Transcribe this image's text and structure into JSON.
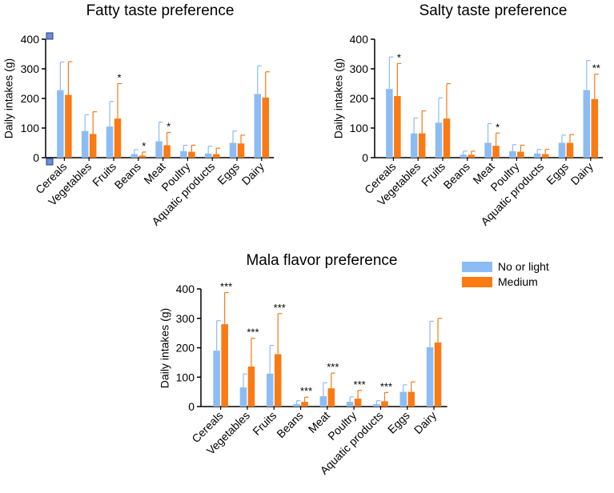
{
  "chart_data": [
    {
      "type": "bar",
      "title": "Fatty taste preference",
      "ylabel": "Daily intakes (g)",
      "ylim": [
        0,
        400
      ],
      "yticks": [
        0,
        100,
        200,
        300,
        400
      ],
      "categories": [
        "Cereals",
        "Vegetables",
        "Fruits",
        "Beans",
        "Meat",
        "Poultry",
        "Aquatic products",
        "Eggs",
        "Dairy"
      ],
      "series": [
        {
          "name": "No or light",
          "values": [
            228,
            90,
            105,
            12,
            55,
            22,
            14,
            50,
            215
          ],
          "errors": [
            95,
            55,
            85,
            15,
            65,
            20,
            25,
            40,
            95
          ]
        },
        {
          "name": "Medium",
          "values": [
            212,
            80,
            132,
            7,
            42,
            20,
            12,
            48,
            203
          ],
          "errors": [
            112,
            75,
            118,
            12,
            43,
            22,
            20,
            28,
            87
          ]
        }
      ],
      "significance": [
        "",
        "",
        "*",
        "*",
        "*",
        "",
        "",
        "",
        ""
      ]
    },
    {
      "type": "bar",
      "title": "Salty taste preference",
      "ylabel": "Daily intakes (g)",
      "ylim": [
        0,
        400
      ],
      "yticks": [
        0,
        100,
        200,
        300,
        400
      ],
      "categories": [
        "Cereals",
        "Vegetables",
        "Fruits",
        "Beans",
        "Meat",
        "Poultry",
        "Aquatic products",
        "Eggs",
        "Dairy"
      ],
      "series": [
        {
          "name": "No or light",
          "values": [
            232,
            82,
            118,
            10,
            50,
            22,
            14,
            50,
            228
          ],
          "errors": [
            108,
            52,
            84,
            12,
            65,
            22,
            14,
            26,
            100
          ]
        },
        {
          "name": "Medium",
          "values": [
            208,
            82,
            132,
            10,
            40,
            20,
            12,
            50,
            198
          ],
          "errors": [
            110,
            76,
            118,
            12,
            43,
            22,
            16,
            28,
            84
          ]
        }
      ],
      "significance": [
        "*",
        "",
        "",
        "",
        "*",
        "",
        "",
        "",
        "**"
      ]
    },
    {
      "type": "bar",
      "title": "Mala flavor preference",
      "ylabel": "Daily intakes (g)",
      "ylim": [
        0,
        400
      ],
      "yticks": [
        0,
        100,
        200,
        300,
        400
      ],
      "categories": [
        "Cereals",
        "Vegetables",
        "Fruits",
        "Beans",
        "Meat",
        "Poultry",
        "Aquatic products",
        "Eggs",
        "Dairy"
      ],
      "series": [
        {
          "name": "No or light",
          "values": [
            190,
            65,
            112,
            8,
            35,
            16,
            8,
            50,
            202
          ],
          "errors": [
            102,
            46,
            96,
            12,
            46,
            17,
            12,
            24,
            88
          ]
        },
        {
          "name": "Medium",
          "values": [
            280,
            136,
            178,
            16,
            62,
            27,
            18,
            50,
            218
          ],
          "errors": [
            108,
            96,
            138,
            16,
            52,
            28,
            30,
            34,
            82
          ]
        }
      ],
      "significance": [
        "***",
        "***",
        "***",
        "***",
        "***",
        "***",
        "***",
        "",
        ""
      ]
    }
  ],
  "legend": [
    {
      "label": "No or light",
      "color": "#8cbcf4"
    },
    {
      "label": "Medium",
      "color": "#fa7a14"
    }
  ],
  "colors": {
    "series0": "#8cbcf4",
    "series1": "#fa7a14",
    "axis": "#000000"
  }
}
